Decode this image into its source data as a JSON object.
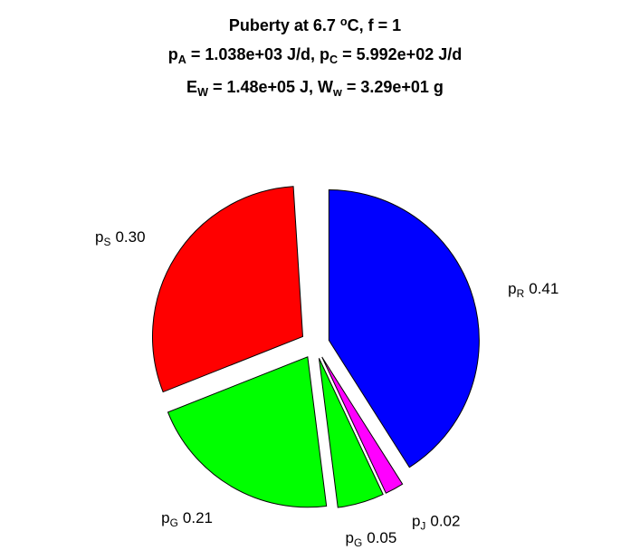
{
  "chart_data": {
    "type": "pie",
    "title": [
      [
        {
          "t": "Puberty at 6.7 "
        },
        {
          "sup": "o"
        },
        {
          "t": "C, f = 1"
        }
      ],
      [
        {
          "t": "p"
        },
        {
          "sub": "A"
        },
        {
          "t": " = 1.038e+03 J/d,  p"
        },
        {
          "sub": "C"
        },
        {
          "t": " = 5.992e+02 J/d"
        }
      ],
      [
        {
          "t": "E"
        },
        {
          "sub": "W"
        },
        {
          "t": " = 1.48e+05 J, W"
        },
        {
          "sub": "w"
        },
        {
          "t": " = 3.29e+01 g"
        }
      ]
    ],
    "categories": [
      {
        "base": "p",
        "sub": "R"
      },
      {
        "base": "p",
        "sub": "J"
      },
      {
        "base": "p",
        "sub": "G"
      },
      {
        "base": "p",
        "sub": "G"
      },
      {
        "base": "p",
        "sub": "S"
      }
    ],
    "values": [
      0.41,
      0.02,
      0.05,
      0.21,
      0.3
    ],
    "value_labels": [
      "0.41",
      "0.02",
      "0.05",
      "0.21",
      "0.30"
    ],
    "colors": [
      "#0000ff",
      "#ff00ff",
      "#00ff00",
      "#00ff00",
      "#ff0000"
    ],
    "explode": true
  }
}
